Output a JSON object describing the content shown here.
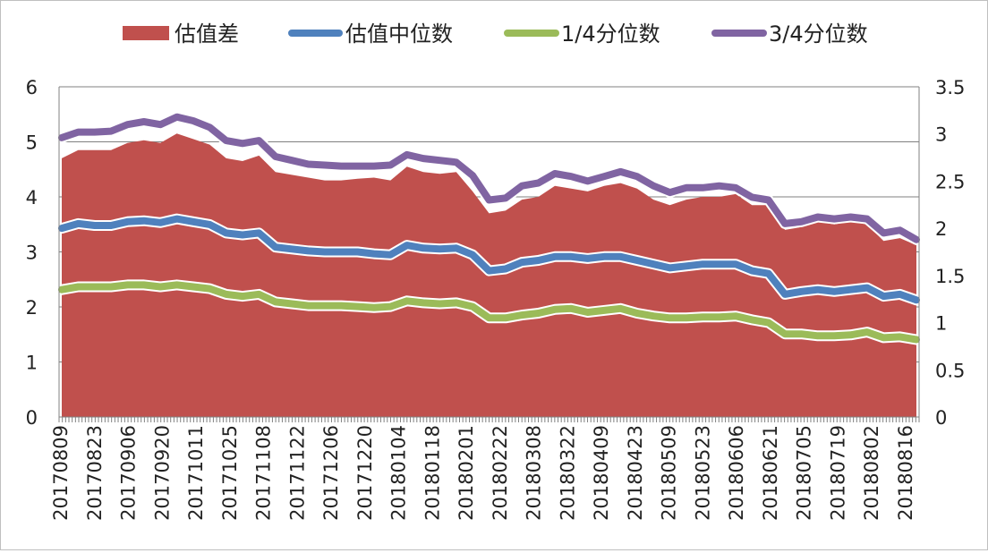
{
  "chart_data": {
    "type": "area",
    "legend_position": "top",
    "grid": true,
    "legend": {
      "spread": "估值差",
      "median": "估值中位数",
      "q1": "1/4分位数",
      "q3": "3/4分位数"
    },
    "colors": {
      "spread": "#c0504d",
      "median": "#4f81bd",
      "q1": "#9bbb59",
      "q3": "#8064a2",
      "grid": "#808080"
    },
    "y_left": {
      "min": 0,
      "max": 6,
      "ticks": [
        "0",
        "1",
        "2",
        "3",
        "4",
        "5",
        "6"
      ]
    },
    "y_right": {
      "min": 0,
      "max": 3.5,
      "ticks": [
        "0",
        "0.5",
        "1",
        "1.5",
        "2",
        "2.5",
        "3",
        "3.5"
      ]
    },
    "x_tick_labels": [
      "20170809",
      "20170823",
      "20170906",
      "20170920",
      "20171011",
      "20171025",
      "20171108",
      "20171122",
      "20171206",
      "20171220",
      "20180104",
      "20180118",
      "20180201",
      "20180222",
      "20180308",
      "20180322",
      "20180409",
      "20180423",
      "20180509",
      "20180523",
      "20180606",
      "20180621",
      "20180705",
      "20180719",
      "20180802",
      "20180816"
    ],
    "series": [
      {
        "name": "估值差",
        "key": "spread",
        "axis": "left",
        "kind": "area",
        "values": [
          4.7,
          4.85,
          4.85,
          4.85,
          4.98,
          5.03,
          4.98,
          5.15,
          5.05,
          4.95,
          4.7,
          4.65,
          4.75,
          4.45,
          4.4,
          4.35,
          4.3,
          4.3,
          4.33,
          4.35,
          4.3,
          4.55,
          4.45,
          4.42,
          4.45,
          4.1,
          3.7,
          3.75,
          3.95,
          4.0,
          4.2,
          4.15,
          4.1,
          4.2,
          4.25,
          4.15,
          3.95,
          3.85,
          3.95,
          4.0,
          4.0,
          4.05,
          3.85,
          3.85,
          3.4,
          3.45,
          3.55,
          3.5,
          3.55,
          3.5,
          3.2,
          3.25,
          3.12
        ]
      },
      {
        "name": "3/4分位数",
        "key": "q3",
        "axis": "right",
        "kind": "line",
        "values": [
          2.96,
          3.02,
          3.02,
          3.03,
          3.1,
          3.13,
          3.1,
          3.18,
          3.14,
          3.07,
          2.93,
          2.9,
          2.93,
          2.76,
          2.72,
          2.68,
          2.67,
          2.66,
          2.66,
          2.66,
          2.67,
          2.78,
          2.74,
          2.72,
          2.7,
          2.56,
          2.3,
          2.32,
          2.45,
          2.48,
          2.58,
          2.55,
          2.5,
          2.55,
          2.6,
          2.55,
          2.45,
          2.38,
          2.43,
          2.43,
          2.45,
          2.43,
          2.33,
          2.3,
          2.05,
          2.07,
          2.12,
          2.1,
          2.12,
          2.1,
          1.95,
          1.98,
          1.88
        ]
      },
      {
        "name": "估值中位数",
        "key": "median",
        "axis": "right",
        "kind": "line",
        "values": [
          2.0,
          2.05,
          2.03,
          2.03,
          2.07,
          2.08,
          2.06,
          2.1,
          2.07,
          2.04,
          1.95,
          1.93,
          1.95,
          1.8,
          1.78,
          1.76,
          1.75,
          1.75,
          1.75,
          1.73,
          1.72,
          1.82,
          1.79,
          1.78,
          1.79,
          1.72,
          1.55,
          1.57,
          1.64,
          1.66,
          1.7,
          1.7,
          1.68,
          1.7,
          1.7,
          1.66,
          1.62,
          1.58,
          1.6,
          1.62,
          1.62,
          1.62,
          1.55,
          1.52,
          1.3,
          1.33,
          1.35,
          1.33,
          1.35,
          1.37,
          1.28,
          1.3,
          1.24
        ]
      },
      {
        "name": "1/4分位数",
        "key": "q1",
        "axis": "right",
        "kind": "line",
        "values": [
          1.35,
          1.38,
          1.38,
          1.38,
          1.4,
          1.4,
          1.38,
          1.4,
          1.38,
          1.36,
          1.3,
          1.28,
          1.3,
          1.22,
          1.2,
          1.18,
          1.18,
          1.18,
          1.17,
          1.16,
          1.17,
          1.23,
          1.21,
          1.2,
          1.21,
          1.17,
          1.05,
          1.05,
          1.08,
          1.1,
          1.14,
          1.15,
          1.11,
          1.13,
          1.15,
          1.1,
          1.07,
          1.05,
          1.05,
          1.06,
          1.06,
          1.07,
          1.03,
          1.0,
          0.88,
          0.88,
          0.86,
          0.86,
          0.87,
          0.9,
          0.84,
          0.85,
          0.82
        ]
      }
    ]
  }
}
